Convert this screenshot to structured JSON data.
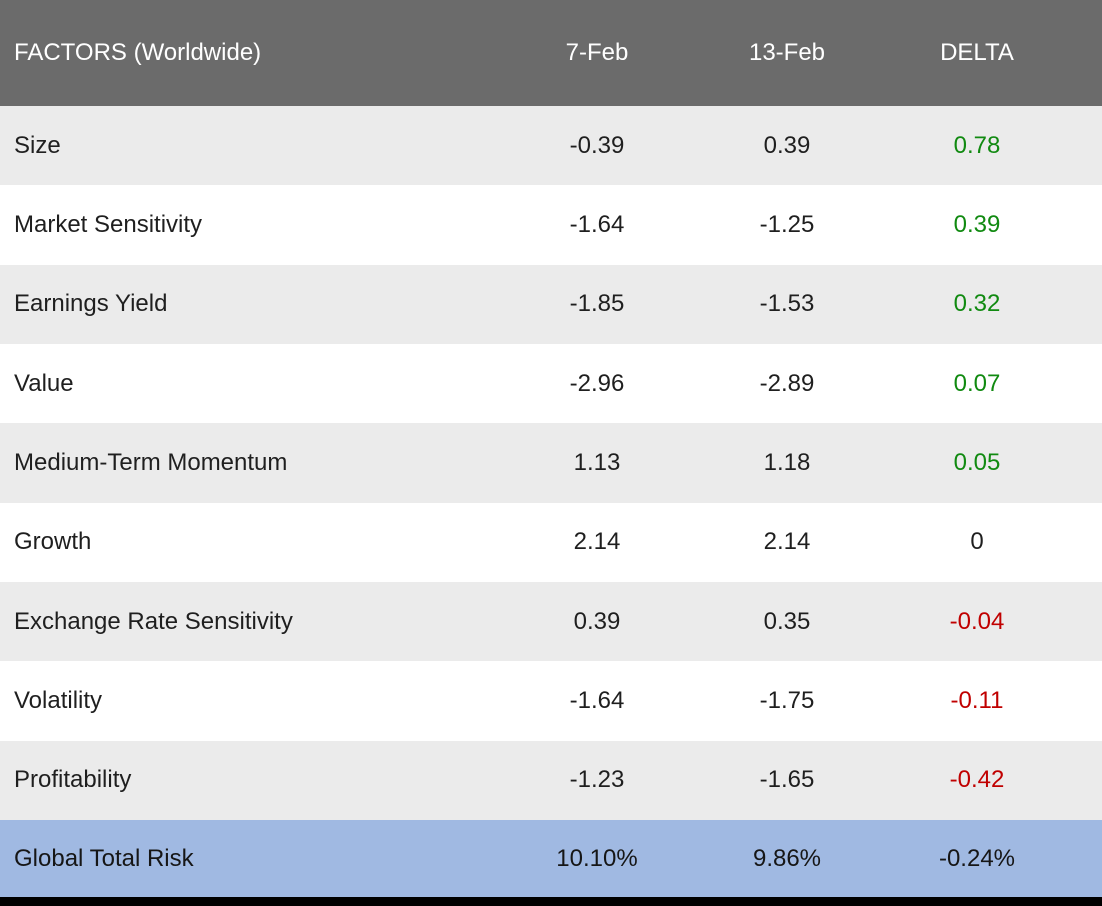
{
  "colors": {
    "header_bg": "#6b6b6b",
    "header_text": "#ffffff",
    "row_stripe_bg": "#ebebeb",
    "row_plain_bg": "#ffffff",
    "total_row_bg": "#a0b9e2",
    "delta_positive": "#118a11",
    "delta_negative": "#c00000",
    "body_text": "#1f1f1f",
    "bottom_bar": "#000000"
  },
  "table": {
    "header": {
      "factor": "FACTORS (Worldwide)",
      "feb7": "7-Feb",
      "feb13": "13-Feb",
      "delta": "DELTA"
    },
    "rows": [
      {
        "factor": "Size",
        "feb7": "-0.39",
        "feb13": "0.39",
        "delta": "0.78",
        "delta_color": "green"
      },
      {
        "factor": "Market Sensitivity",
        "feb7": "-1.64",
        "feb13": "-1.25",
        "delta": "0.39",
        "delta_color": "green"
      },
      {
        "factor": "Earnings Yield",
        "feb7": "-1.85",
        "feb13": "-1.53",
        "delta": "0.32",
        "delta_color": "green"
      },
      {
        "factor": "Value",
        "feb7": "-2.96",
        "feb13": "-2.89",
        "delta": "0.07",
        "delta_color": "green"
      },
      {
        "factor": "Medium-Term Momentum",
        "feb7": "1.13",
        "feb13": "1.18",
        "delta": "0.05",
        "delta_color": "green"
      },
      {
        "factor": "Growth",
        "feb7": "2.14",
        "feb13": "2.14",
        "delta": "0",
        "delta_color": "black"
      },
      {
        "factor": "Exchange Rate Sensitivity",
        "feb7": "0.39",
        "feb13": "0.35",
        "delta": "-0.04",
        "delta_color": "red"
      },
      {
        "factor": "Volatility",
        "feb7": "-1.64",
        "feb13": "-1.75",
        "delta": "-0.11",
        "delta_color": "red"
      },
      {
        "factor": "Profitability",
        "feb7": "-1.23",
        "feb13": "-1.65",
        "delta": "-0.42",
        "delta_color": "red"
      }
    ],
    "total_row": {
      "factor": "Global Total Risk",
      "feb7": "10.10%",
      "feb13": "9.86%",
      "delta": "-0.24%"
    }
  },
  "chart_data": {
    "type": "table",
    "title": "FACTORS (Worldwide)",
    "columns": [
      "FACTORS (Worldwide)",
      "7-Feb",
      "13-Feb",
      "DELTA"
    ],
    "rows": [
      [
        "Size",
        -0.39,
        0.39,
        0.78
      ],
      [
        "Market Sensitivity",
        -1.64,
        -1.25,
        0.39
      ],
      [
        "Earnings Yield",
        -1.85,
        -1.53,
        0.32
      ],
      [
        "Value",
        -2.96,
        -2.89,
        0.07
      ],
      [
        "Medium-Term Momentum",
        1.13,
        1.18,
        0.05
      ],
      [
        "Growth",
        2.14,
        2.14,
        0
      ],
      [
        "Exchange Rate Sensitivity",
        0.39,
        0.35,
        -0.04
      ],
      [
        "Volatility",
        -1.64,
        -1.75,
        -0.11
      ],
      [
        "Profitability",
        -1.23,
        -1.65,
        -0.42
      ]
    ],
    "total_row": [
      "Global Total Risk",
      "10.10%",
      "9.86%",
      "-0.24%"
    ],
    "notes": "DELTA column colored green for positive, red for negative, black for zero; total row values are percentages"
  }
}
